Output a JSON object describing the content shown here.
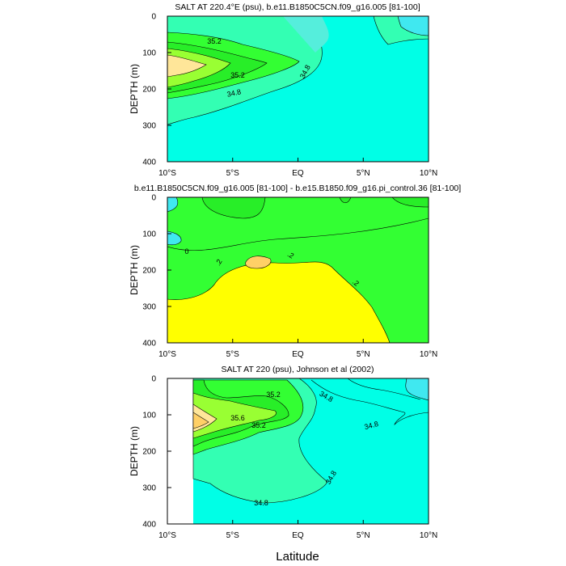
{
  "colors": {
    "cyan": "#00ffe6",
    "light_cyan": "#55eedc",
    "sky": "#40e8f0",
    "mint": "#33ffb3",
    "green": "#33ff33",
    "mid_green": "#28ee28",
    "lime": "#99ff33",
    "yellow": "#ffff00",
    "orange_light": "#ffd066",
    "peach": "#ffe699",
    "line": "#000000"
  },
  "xlabel": "Latitude",
  "chart_data": [
    {
      "type": "contour",
      "title": "SALT AT 220.4°E (psu), b.e11.B1850C5CN.f09_g16.005 [81-100]",
      "ylabel": "DEPTH (m)",
      "xlim": [
        -10,
        10
      ],
      "ylim": [
        400,
        0
      ],
      "x_ticks": [
        "10°S",
        "5°S",
        "EQ",
        "5°N",
        "10°N"
      ],
      "y_ticks": [
        "0",
        "100",
        "200",
        "300",
        "400"
      ],
      "contour_labels": [
        "35.2",
        "35.2",
        "34.8",
        "34.8"
      ],
      "levels": [
        34.4,
        34.8,
        35.2,
        35.6
      ]
    },
    {
      "type": "contour",
      "title": "b.e11.B1850C5CN.f09_g16.005 [81-100] - b.e15.B1850.f09_g16.pi_control.36 [81-100]",
      "ylabel": "DEPTH (m)",
      "xlim": [
        -10,
        10
      ],
      "ylim": [
        400,
        0
      ],
      "x_ticks": [
        "10°S",
        "5°S",
        "EQ",
        "5°N",
        "10°N"
      ],
      "y_ticks": [
        "0",
        "100",
        "200",
        "300",
        "400"
      ],
      "contour_labels": [
        "0",
        ".2",
        ".2",
        ".2"
      ],
      "levels": [
        -0.2,
        0,
        0.2,
        0.4
      ]
    },
    {
      "type": "contour",
      "title": "SALT AT 220 (psu), Johnson et al (2002)",
      "ylabel": "DEPTH (m)",
      "xlim": [
        -10,
        10
      ],
      "ylim": [
        400,
        0
      ],
      "x_ticks": [
        "10°S",
        "5°S",
        "EQ",
        "5°N",
        "10°N"
      ],
      "y_ticks": [
        "0",
        "100",
        "200",
        "300",
        "400"
      ],
      "contour_labels": [
        "35.2",
        "35.6",
        "35.2",
        "34.8",
        "34.8",
        "34.8",
        "34.8"
      ],
      "levels": [
        34.4,
        34.8,
        35.2,
        35.6
      ]
    }
  ]
}
